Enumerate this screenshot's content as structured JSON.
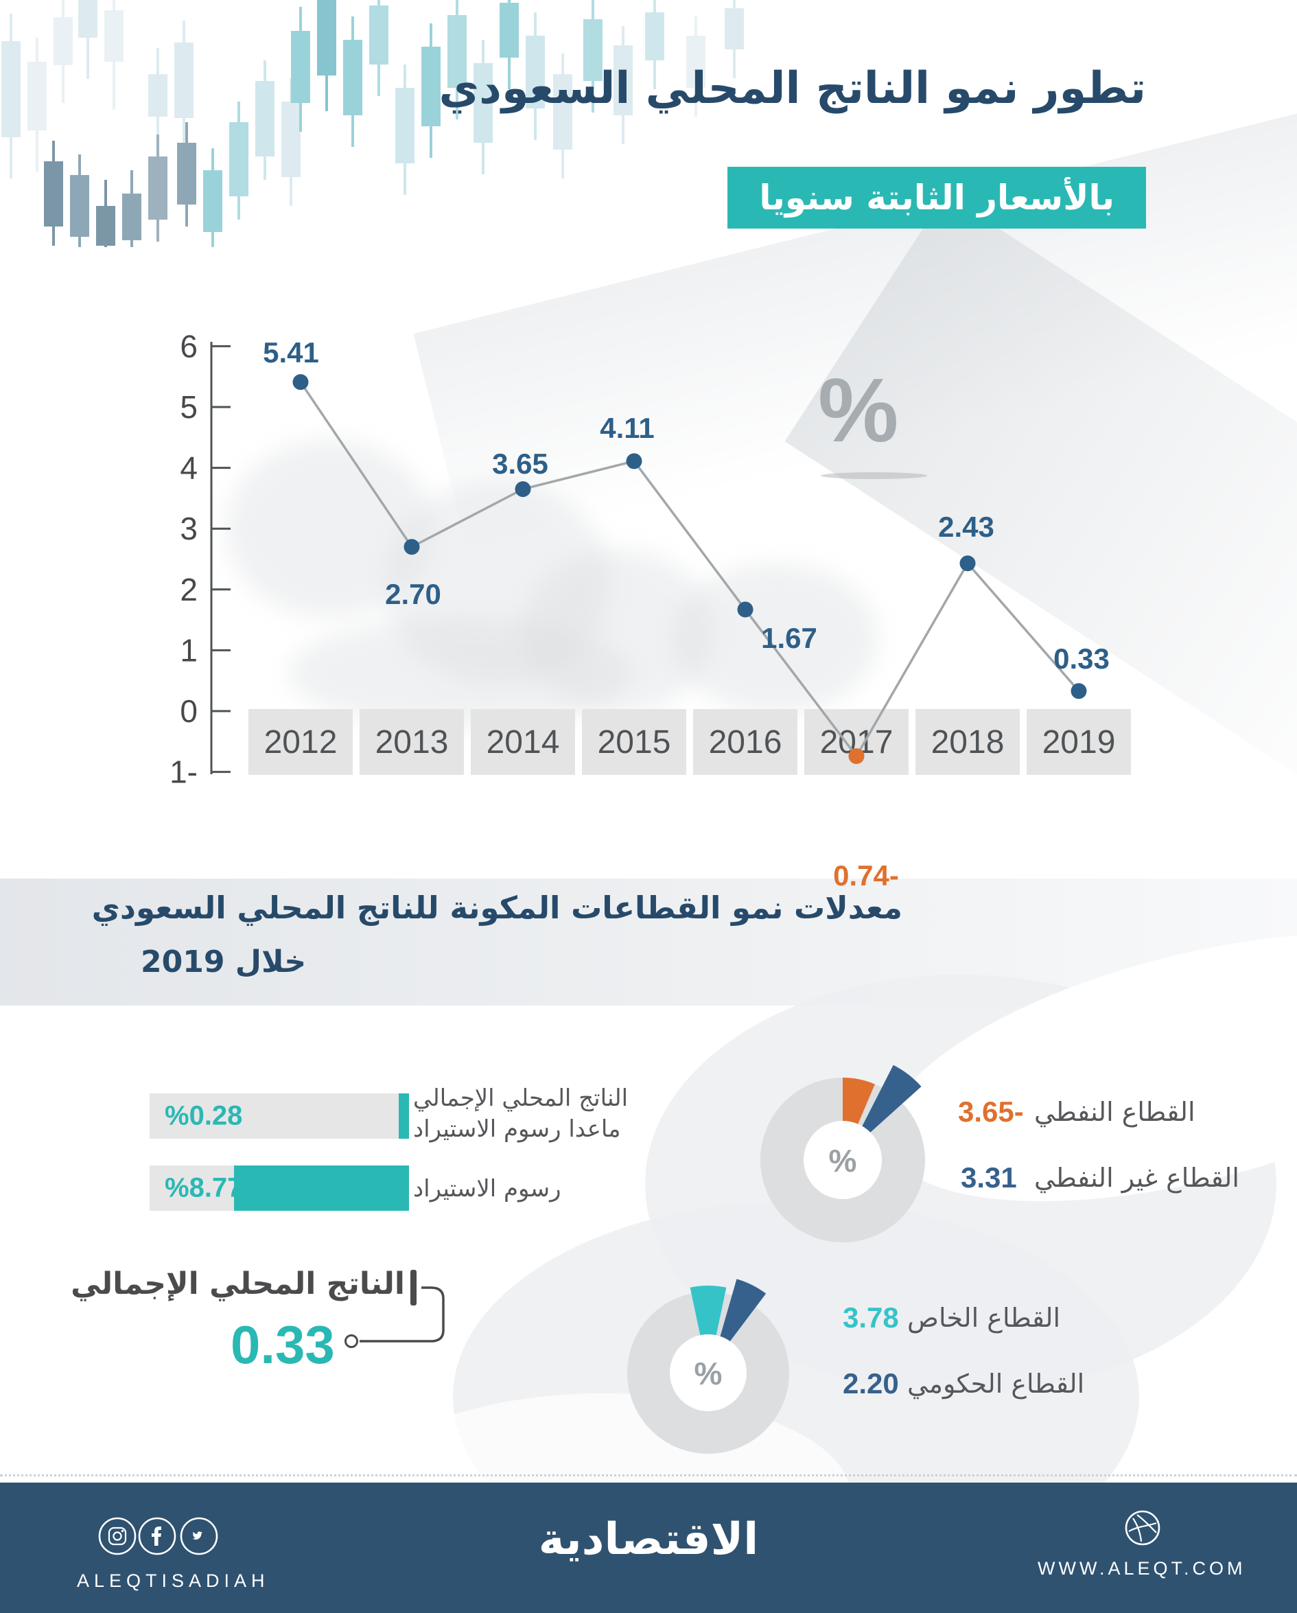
{
  "colors": {
    "navy": "#274a6a",
    "teal": "#2ab8b4",
    "teal_light": "#35c3c8",
    "orange": "#e0702e",
    "steel": "#36618c",
    "point_navy": "#2d5f88",
    "line_gray": "#a3a7aa",
    "footer_navy": "#2f5270"
  },
  "header": {
    "title": "تطور نمو الناتج المحلي السعودي",
    "subtitle": "بالأسعار الثابتة سنويا"
  },
  "gdp_line_chart": {
    "unit_watermark": "%",
    "y_ticks": [
      6,
      5,
      4,
      3,
      2,
      1,
      0,
      -1
    ],
    "y_tick_labels": [
      "6",
      "5",
      "4",
      "3",
      "2",
      "1",
      "0",
      "1-"
    ],
    "years": [
      "2012",
      "2013",
      "2014",
      "2015",
      "2016",
      "2017",
      "2018",
      "2019"
    ],
    "values": [
      5.41,
      2.7,
      3.65,
      4.11,
      1.67,
      -0.74,
      2.43,
      0.33
    ],
    "value_labels": [
      "5.41",
      "2.70",
      "3.65",
      "4.11",
      "1.67",
      "0.74-",
      "2.43",
      "0.33"
    ]
  },
  "section2": {
    "title_line1": "معدلات نمو القطاعات المكونة للناتج المحلي السعودي",
    "title_line2": "خلال 2019",
    "bars": [
      {
        "value": 0.28,
        "value_label": "%0.28",
        "label_line1": "الناتج المحلي الإجمالي",
        "label_line2": "ماعدا رسوم الاستيراد"
      },
      {
        "value": 8.77,
        "value_label": "%8.77",
        "label_line1": "رسوم الاستيراد",
        "label_line2": ""
      }
    ],
    "gdp_callout": {
      "label": "الناتج المحلي الإجمالي",
      "value": "0.33"
    },
    "donut_oil": {
      "center": "%",
      "rows": [
        {
          "value_label": "3.65-",
          "label": "القطاع النفطي"
        },
        {
          "value_label": "3.31",
          "label": "القطاع غير النفطي"
        }
      ]
    },
    "donut_sector": {
      "center": "%",
      "rows": [
        {
          "value_label": "3.78",
          "label": "القطاع الخاص"
        },
        {
          "value_label": "2.20",
          "label": "القطاع الحكومي"
        }
      ]
    }
  },
  "footer": {
    "handle": "ALEQTISADIAH",
    "logo": "الاقتصادية",
    "website": "WWW.ALEQT.COM",
    "social_icons": [
      "instagram-icon",
      "facebook-icon",
      "twitter-icon",
      "globe-icon"
    ]
  },
  "chart_data": [
    {
      "type": "line",
      "title": "تطور نمو الناتج المحلي السعودي بالأسعار الثابتة سنويا",
      "unit": "%",
      "categories": [
        "2012",
        "2013",
        "2014",
        "2015",
        "2016",
        "2017",
        "2018",
        "2019"
      ],
      "values": [
        5.41,
        2.7,
        3.65,
        4.11,
        1.67,
        -0.74,
        2.43,
        0.33
      ],
      "ylim": [
        -1,
        6
      ],
      "yticks": [
        6,
        5,
        4,
        3,
        2,
        1,
        0,
        -1
      ],
      "grid": false,
      "negative_point_color": "#e0702e",
      "point_color": "#2d5f88"
    },
    {
      "type": "bar",
      "orientation": "horizontal",
      "direction": "rtl",
      "title": "معدلات نمو القطاعات المكونة للناتج المحلي السعودي خلال 2019",
      "categories": [
        "الناتج المحلي الإجمالي ماعدا رسوم الاستيراد",
        "رسوم الاستيراد"
      ],
      "values": [
        0.28,
        8.77
      ],
      "unit": "%",
      "annotation": {
        "label": "الناتج المحلي الإجمالي",
        "value": 0.33
      }
    },
    {
      "type": "pie",
      "donut": true,
      "unit": "%",
      "labels": [
        "القطاع النفطي",
        "القطاع غير النفطي"
      ],
      "values": [
        -3.65,
        3.31
      ],
      "colors": [
        "#e0702e",
        "#36618c"
      ]
    },
    {
      "type": "pie",
      "donut": true,
      "unit": "%",
      "labels": [
        "القطاع الخاص",
        "القطاع الحكومي"
      ],
      "values": [
        3.78,
        2.2
      ],
      "colors": [
        "#35c3c8",
        "#36618c"
      ]
    }
  ]
}
